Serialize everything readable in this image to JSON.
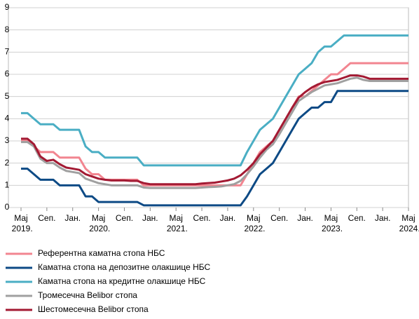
{
  "chart_data": {
    "type": "line",
    "categories": [
      "Мај 2019.",
      null,
      null,
      null,
      "Сеп.",
      null,
      null,
      null,
      "Јан.",
      null,
      null,
      null,
      "Мај 2020.",
      null,
      null,
      null,
      "Сеп.",
      null,
      null,
      null,
      "Јан.",
      null,
      null,
      null,
      "Мај 2021.",
      null,
      null,
      null,
      "Сеп.",
      null,
      null,
      null,
      "Јан.",
      null,
      null,
      null,
      "Мај 2022.",
      null,
      null,
      null,
      "Сеп.",
      null,
      null,
      null,
      "Јан.",
      null,
      null,
      null,
      "Мај 2023.",
      null,
      null,
      null,
      "Сеп.",
      null,
      null,
      null,
      "Јан.",
      null,
      null,
      null,
      "Мај 2024."
    ],
    "series": [
      {
        "name": "Референтна каматна стопа НБС",
        "color": "#f28590",
        "values": [
          3,
          3,
          2.75,
          2.5,
          2.5,
          2.5,
          2.25,
          2.25,
          2.25,
          2.25,
          1.75,
          1.5,
          1.5,
          1.25,
          1.25,
          1.25,
          1.25,
          1.25,
          1.25,
          1,
          1,
          1,
          1,
          1,
          1,
          1,
          1,
          1,
          1,
          1,
          1,
          1,
          1,
          1,
          1,
          1.5,
          2,
          2.5,
          2.75,
          3,
          3.5,
          4,
          4.5,
          5,
          5,
          5.25,
          5.5,
          5.75,
          6,
          6,
          6.25,
          6.5,
          6.5,
          6.5,
          6.5,
          6.5,
          6.5,
          6.5,
          6.5,
          6.5,
          6.5
        ]
      },
      {
        "name": "Каматна стопа на депозитне олакшице НБС",
        "color": "#0d4a85",
        "values": [
          1.75,
          1.75,
          1.5,
          1.25,
          1.25,
          1.25,
          1,
          1,
          1,
          1,
          0.5,
          0.5,
          0.25,
          0.25,
          0.25,
          0.25,
          0.25,
          0.25,
          0.25,
          0.1,
          0.1,
          0.1,
          0.1,
          0.1,
          0.1,
          0.1,
          0.1,
          0.1,
          0.1,
          0.1,
          0.1,
          0.1,
          0.1,
          0.1,
          0.1,
          0.5,
          1,
          1.5,
          1.75,
          2,
          2.5,
          3,
          3.5,
          4,
          4.25,
          4.5,
          4.5,
          4.75,
          4.75,
          5.25,
          5.25,
          5.25,
          5.25,
          5.25,
          5.25,
          5.25,
          5.25,
          5.25,
          5.25,
          5.25,
          5.25
        ]
      },
      {
        "name": "Каматна стопа на кредитне олакшице НБС",
        "color": "#4aaec4",
        "values": [
          4.25,
          4.25,
          4,
          3.75,
          3.75,
          3.75,
          3.5,
          3.5,
          3.5,
          3.5,
          2.75,
          2.5,
          2.5,
          2.25,
          2.25,
          2.25,
          2.25,
          2.25,
          2.25,
          1.9,
          1.9,
          1.9,
          1.9,
          1.9,
          1.9,
          1.9,
          1.9,
          1.9,
          1.9,
          1.9,
          1.9,
          1.9,
          1.9,
          1.9,
          1.9,
          2.5,
          3,
          3.5,
          3.75,
          4,
          4.5,
          5,
          5.5,
          6,
          6.25,
          6.5,
          7,
          7.25,
          7.25,
          7.5,
          7.75,
          7.75,
          7.75,
          7.75,
          7.75,
          7.75,
          7.75,
          7.75,
          7.75,
          7.75,
          7.75
        ]
      },
      {
        "name": "Тромесечна Belibor стопа",
        "color": "#a0a0a0",
        "values": [
          2.95,
          2.95,
          2.75,
          2.2,
          2,
          2,
          1.8,
          1.65,
          1.6,
          1.55,
          1.3,
          1.2,
          1.1,
          1.05,
          1,
          1,
          1,
          1,
          1,
          0.9,
          0.88,
          0.88,
          0.88,
          0.88,
          0.88,
          0.88,
          0.88,
          0.88,
          0.9,
          0.92,
          0.93,
          0.95,
          1,
          1.05,
          1.2,
          1.5,
          1.85,
          2.25,
          2.6,
          2.85,
          3.3,
          3.8,
          4.3,
          4.8,
          5,
          5.2,
          5.35,
          5.5,
          5.55,
          5.6,
          5.7,
          5.8,
          5.85,
          5.75,
          5.7,
          5.7,
          5.7,
          5.7,
          5.7,
          5.7,
          5.7
        ]
      },
      {
        "name": "Шестомесечна Belibor стопа",
        "color": "#a31a33",
        "values": [
          3.1,
          3.1,
          2.85,
          2.3,
          2.1,
          2.15,
          1.95,
          1.8,
          1.75,
          1.7,
          1.5,
          1.4,
          1.3,
          1.25,
          1.22,
          1.22,
          1.22,
          1.2,
          1.2,
          1.1,
          1.05,
          1.05,
          1.05,
          1.05,
          1.05,
          1.05,
          1.05,
          1.05,
          1.08,
          1.1,
          1.12,
          1.17,
          1.22,
          1.3,
          1.45,
          1.7,
          2,
          2.4,
          2.7,
          3,
          3.5,
          4,
          4.5,
          4.95,
          5.2,
          5.4,
          5.55,
          5.65,
          5.7,
          5.75,
          5.85,
          5.95,
          5.95,
          5.9,
          5.8,
          5.8,
          5.8,
          5.8,
          5.8,
          5.8,
          5.8
        ]
      }
    ],
    "ylim": [
      0,
      9
    ],
    "yticks": [
      0,
      1,
      2,
      3,
      4,
      5,
      6,
      7,
      8,
      9
    ],
    "grid": true,
    "legend": "bottom"
  }
}
